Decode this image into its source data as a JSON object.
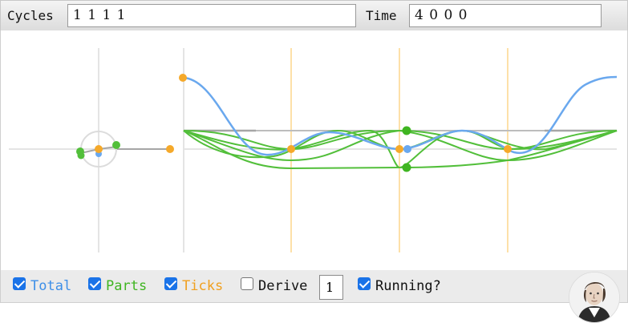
{
  "top": {
    "cycles_label": "Cycles",
    "cycles_value": "1 1 1 1",
    "time_label": "Time",
    "time_value": "4 0 0 0"
  },
  "controls": {
    "total": {
      "label": "Total",
      "checked": true,
      "color": "#3d8fe8"
    },
    "parts": {
      "label": "Parts",
      "checked": true,
      "color": "#3fb521"
    },
    "ticks": {
      "label": "Ticks",
      "checked": true,
      "color": "#f0a020"
    },
    "derive": {
      "label": "Derive",
      "checked": false,
      "value": "1"
    },
    "running": {
      "label": "Running?",
      "checked": true
    }
  },
  "colors": {
    "total": "#6aa8ee",
    "parts": "#52bf3a",
    "ticks": "#f5a92a",
    "tick_lines": "#fde0a8",
    "axis": "#e4e4e4",
    "baseline": "#a6a6a6"
  },
  "icons": {
    "portrait": "fourier-portrait-icon"
  }
}
